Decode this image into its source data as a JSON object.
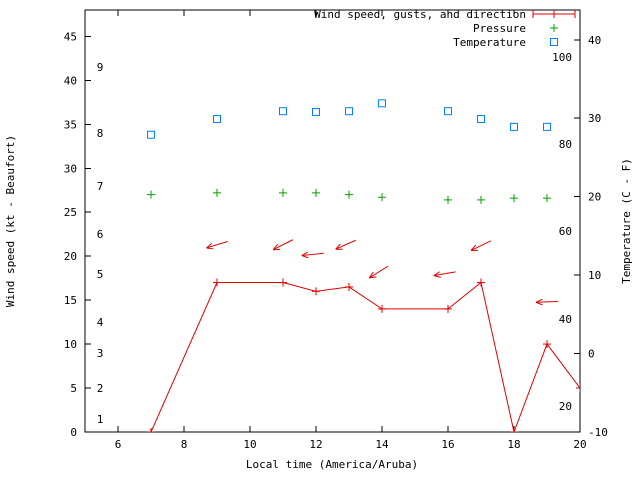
{
  "chart_data": {
    "type": "line",
    "xlabel": "Local time (America/Aruba)",
    "ylabel_left": "Wind speed (kt - Beaufort)",
    "ylabel_right": "Temperature (C - F)",
    "x_range": [
      5,
      20
    ],
    "x_ticks": [
      6,
      8,
      10,
      12,
      14,
      16,
      18,
      20
    ],
    "y_left_range": [
      0,
      48
    ],
    "y_left_ticks": [
      0,
      5,
      10,
      15,
      20,
      25,
      30,
      35,
      40,
      45
    ],
    "y_right_range": [
      -10,
      43.8
    ],
    "y_right_ticks": [
      -10,
      0,
      10,
      20,
      30,
      40
    ],
    "beaufort_labels": [
      {
        "label": "1",
        "kt": 1.5
      },
      {
        "label": "2",
        "kt": 5
      },
      {
        "label": "3",
        "kt": 9
      },
      {
        "label": "4",
        "kt": 12.5
      },
      {
        "label": "5",
        "kt": 18
      },
      {
        "label": "6",
        "kt": 22.5
      },
      {
        "label": "7",
        "kt": 28
      },
      {
        "label": "8",
        "kt": 34
      },
      {
        "label": "9",
        "kt": 41.5
      }
    ],
    "fahrenheit_labels": [
      {
        "label": "20",
        "c": -6.7
      },
      {
        "label": "40",
        "c": 4.4
      },
      {
        "label": "60",
        "c": 15.6
      },
      {
        "label": "80",
        "c": 26.7
      },
      {
        "label": "100",
        "c": 37.8
      }
    ],
    "legend": [
      {
        "label": "Wind speed, gusts, and direction",
        "color": "#e00000",
        "marker": "errorline-plus"
      },
      {
        "label": "Pressure",
        "color": "#00a000",
        "marker": "plus"
      },
      {
        "label": "Temperature",
        "color": "#0080ff",
        "marker": "open-square"
      }
    ],
    "series": {
      "wind": {
        "x": [
          7,
          9,
          11,
          12,
          13,
          14,
          16,
          17,
          18,
          19,
          20
        ],
        "y_kt": [
          0,
          17,
          17,
          16,
          16.5,
          14,
          14,
          17,
          0,
          10,
          5
        ]
      },
      "pressure": {
        "x": [
          7,
          9,
          11,
          12,
          13,
          14,
          16,
          17,
          18,
          19
        ],
        "y_plot": [
          27.0,
          27.2,
          27.2,
          27.2,
          27.0,
          26.7,
          26.4,
          26.4,
          26.6,
          26.6
        ]
      },
      "temperature": {
        "x": [
          7,
          9,
          11,
          12,
          13,
          14,
          16,
          17,
          18,
          19
        ],
        "c": [
          27.9,
          29.9,
          30.9,
          30.8,
          30.9,
          31.9,
          30.9,
          29.9,
          28.9,
          28.9
        ]
      },
      "gust_arrows": [
        {
          "x": 9,
          "y_kt": 21.3,
          "dir_deg": 197
        },
        {
          "x": 11,
          "y_kt": 21.3,
          "dir_deg": 207
        },
        {
          "x": 11.9,
          "y_kt": 20.2,
          "dir_deg": 186
        },
        {
          "x": 12.9,
          "y_kt": 21.3,
          "dir_deg": 204
        },
        {
          "x": 13.9,
          "y_kt": 18.2,
          "dir_deg": 212
        },
        {
          "x": 15.9,
          "y_kt": 18.0,
          "dir_deg": 190
        },
        {
          "x": 17,
          "y_kt": 21.2,
          "dir_deg": 206
        },
        {
          "x": 19,
          "y_kt": 14.8,
          "dir_deg": 182
        }
      ]
    },
    "colors": {
      "wind": "#e00000",
      "pressure": "#00a000",
      "temperature": "#0080ff",
      "axis": "#000000",
      "background": "#ffffff"
    }
  }
}
